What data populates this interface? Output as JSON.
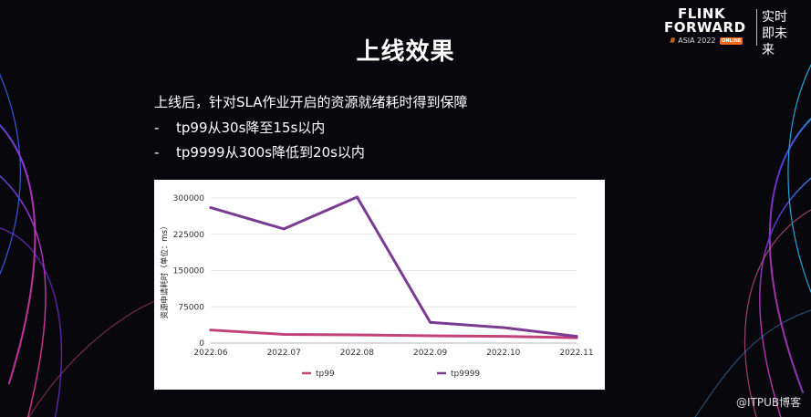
{
  "slide": {
    "title": "上线效果",
    "intro": "上线后，针对SLA作业开启的资源就绪耗时得到保障",
    "bullets": [
      {
        "dash": "-",
        "text": "tp99从30s降至15s以内"
      },
      {
        "dash": "-",
        "text": "tp9999从300s降低到20s以内"
      }
    ]
  },
  "brand": {
    "line1": "FLINK",
    "line2": "FORWARD",
    "sub_hash": "#",
    "sub_text": "ASIA 2022",
    "sub_badge": "ONLINE",
    "cn_text": "实时即未来"
  },
  "watermark": "@ITPUB博客",
  "colors": {
    "tp99": "#c2427a",
    "tp9999": "#7b3b93",
    "grid": "#e6e6e6",
    "background": "#08070b"
  },
  "chart_data": {
    "type": "line",
    "categories": [
      "2022.06",
      "2022.07",
      "2022.08",
      "2022.09",
      "2022.10",
      "2022.11"
    ],
    "ylabel": "资源申请耗时（单位：ms）",
    "ylim": [
      0,
      300000
    ],
    "yticks": [
      0,
      75000,
      150000,
      225000,
      300000
    ],
    "ytick_labels": [
      "0",
      "75000",
      "150000",
      "225000",
      "300000"
    ],
    "grid": true,
    "legend_position": "bottom",
    "series": [
      {
        "name": "tp99",
        "values": [
          27000,
          18000,
          17000,
          15000,
          14000,
          11000
        ]
      },
      {
        "name": "tp9999",
        "values": [
          280000,
          236000,
          302000,
          43000,
          32000,
          14000
        ]
      }
    ]
  }
}
